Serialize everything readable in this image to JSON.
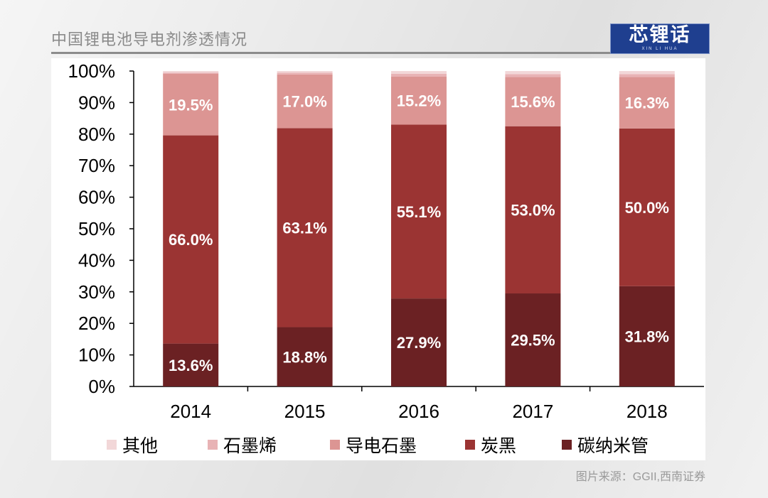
{
  "header": {
    "title": "中国锂电池导电剂渗透情况",
    "logo_text": "芯锂话",
    "logo_subtext": "XIN LI HUA"
  },
  "source_text": "图片来源：GGII,西南证券",
  "colors": {
    "other": "#f2d7d8",
    "graphene": "#e8b3b5",
    "graphite": "#dc9593",
    "carbon_black": "#9b3433",
    "cnt": "#6b2123"
  },
  "chart_data": {
    "type": "bar",
    "stacked": true,
    "categories": [
      "2014",
      "2015",
      "2016",
      "2017",
      "2018"
    ],
    "y_ticks": [
      "0%",
      "10%",
      "20%",
      "30%",
      "40%",
      "50%",
      "60%",
      "70%",
      "80%",
      "90%",
      "100%"
    ],
    "ylim": [
      0,
      100
    ],
    "legend_position": "bottom",
    "series": [
      {
        "name": "碳纳米管",
        "key": "cnt",
        "values": [
          13.6,
          18.8,
          27.9,
          29.5,
          31.8
        ],
        "labels": [
          "13.6%",
          "18.8%",
          "27.9%",
          "29.5%",
          "31.8%"
        ]
      },
      {
        "name": "炭黑",
        "key": "carbon_black",
        "values": [
          66.0,
          63.1,
          55.1,
          53.0,
          50.0
        ],
        "labels": [
          "66.0%",
          "63.1%",
          "55.1%",
          "53.0%",
          "50.0%"
        ]
      },
      {
        "name": "导电石墨",
        "key": "graphite",
        "values": [
          19.5,
          17.0,
          15.2,
          15.6,
          16.3
        ],
        "labels": [
          "19.5%",
          "17.0%",
          "15.2%",
          "15.6%",
          "16.3%"
        ]
      },
      {
        "name": "石墨烯",
        "key": "graphene",
        "values": [
          0.4,
          0.6,
          0.9,
          0.9,
          0.9
        ],
        "labels": null
      },
      {
        "name": "其他",
        "key": "other",
        "values": [
          0.5,
          0.5,
          0.9,
          1.0,
          1.0
        ],
        "labels": null
      }
    ],
    "legend_order": [
      "其他",
      "石墨烯",
      "导电石墨",
      "炭黑",
      "碳纳米管"
    ]
  }
}
